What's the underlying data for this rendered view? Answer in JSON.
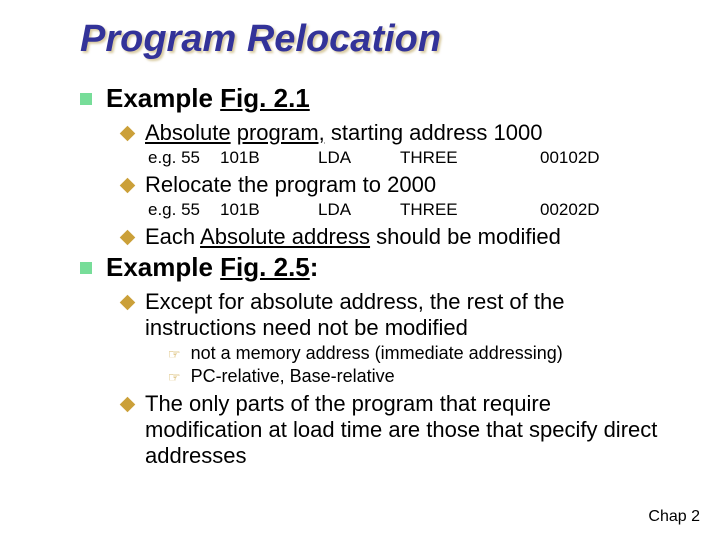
{
  "title": "Program Relocation",
  "items": [
    {
      "type": "lvl1",
      "segments": [
        {
          "text": "Example ",
          "bold": true
        },
        {
          "text": "Fig. 2.1",
          "bold": true,
          "underline": true
        }
      ]
    },
    {
      "type": "lvl2",
      "segments": [
        {
          "text": "Absolute",
          "underline": true
        },
        {
          "text": " "
        },
        {
          "text": "program,",
          "underline": true
        },
        {
          "text": " starting address 1000"
        }
      ]
    },
    {
      "type": "code",
      "eg": "e.g. 55",
      "c1": "101B",
      "c2": "LDA",
      "c3": "THREE",
      "c4": "00102D"
    },
    {
      "type": "lvl2",
      "segments": [
        {
          "text": "Relocate the program to 2000"
        }
      ]
    },
    {
      "type": "code",
      "eg": "e.g. 55",
      "c1": "101B",
      "c2": "LDA",
      "c3": "THREE",
      "c4": "00202D"
    },
    {
      "type": "lvl2",
      "segments": [
        {
          "text": "Each "
        },
        {
          "text": "Absolute address",
          "underline": true
        },
        {
          "text": " should be modified"
        }
      ]
    },
    {
      "type": "lvl1",
      "segments": [
        {
          "text": "Example ",
          "bold": true
        },
        {
          "text": "Fig. 2.5",
          "bold": true,
          "underline": true
        },
        {
          "text": ":",
          "bold": true
        }
      ]
    },
    {
      "type": "lvl2",
      "segments": [
        {
          "text": "Except for absolute address, the rest of the instructions need not be modified"
        }
      ]
    },
    {
      "type": "lvl3",
      "segments": [
        {
          "text": "not a memory address (immediate addressing)"
        }
      ]
    },
    {
      "type": "lvl3",
      "segments": [
        {
          "text": "PC-relative, Base-relative"
        }
      ]
    },
    {
      "type": "lvl2",
      "segments": [
        {
          "text": "The only parts of the program that require modification at load time are those that specify direct addresses"
        }
      ]
    }
  ],
  "footer": "Chap 2",
  "colors": {
    "title": "#333399",
    "lvl1_bullet": "#77dd99",
    "lvl2_bullet": "#cba039",
    "lvl3_bullet": "#cba039",
    "background": "#ffffff"
  }
}
